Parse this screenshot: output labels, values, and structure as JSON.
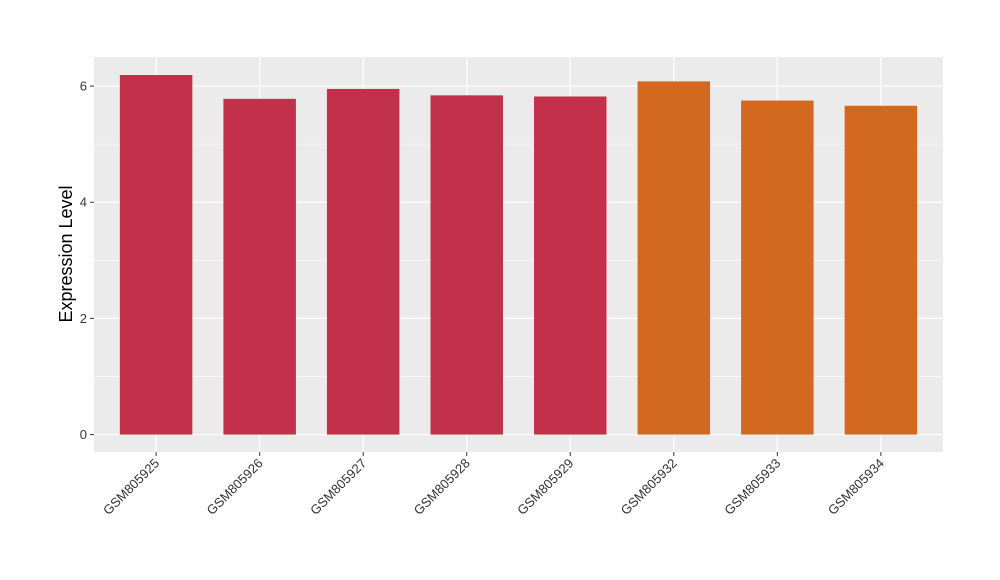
{
  "chart_data": {
    "type": "bar",
    "title": "",
    "xlabel": "",
    "ylabel": "Expression Level",
    "categories": [
      "GSM805925",
      "GSM805926",
      "GSM805927",
      "GSM805928",
      "GSM805929",
      "GSM805932",
      "GSM805933",
      "GSM805934"
    ],
    "values": [
      6.19,
      5.78,
      5.95,
      5.84,
      5.82,
      6.08,
      5.75,
      5.66
    ],
    "groups": [
      0,
      0,
      0,
      0,
      0,
      1,
      1,
      1
    ],
    "group_colors": [
      "#C3304A",
      "#D2691F"
    ],
    "ylim": [
      -0.3,
      6.5
    ],
    "yticks": [
      0,
      2,
      4,
      6
    ],
    "grid": true,
    "legend": "none",
    "panel_background": "#EBEBEB"
  }
}
